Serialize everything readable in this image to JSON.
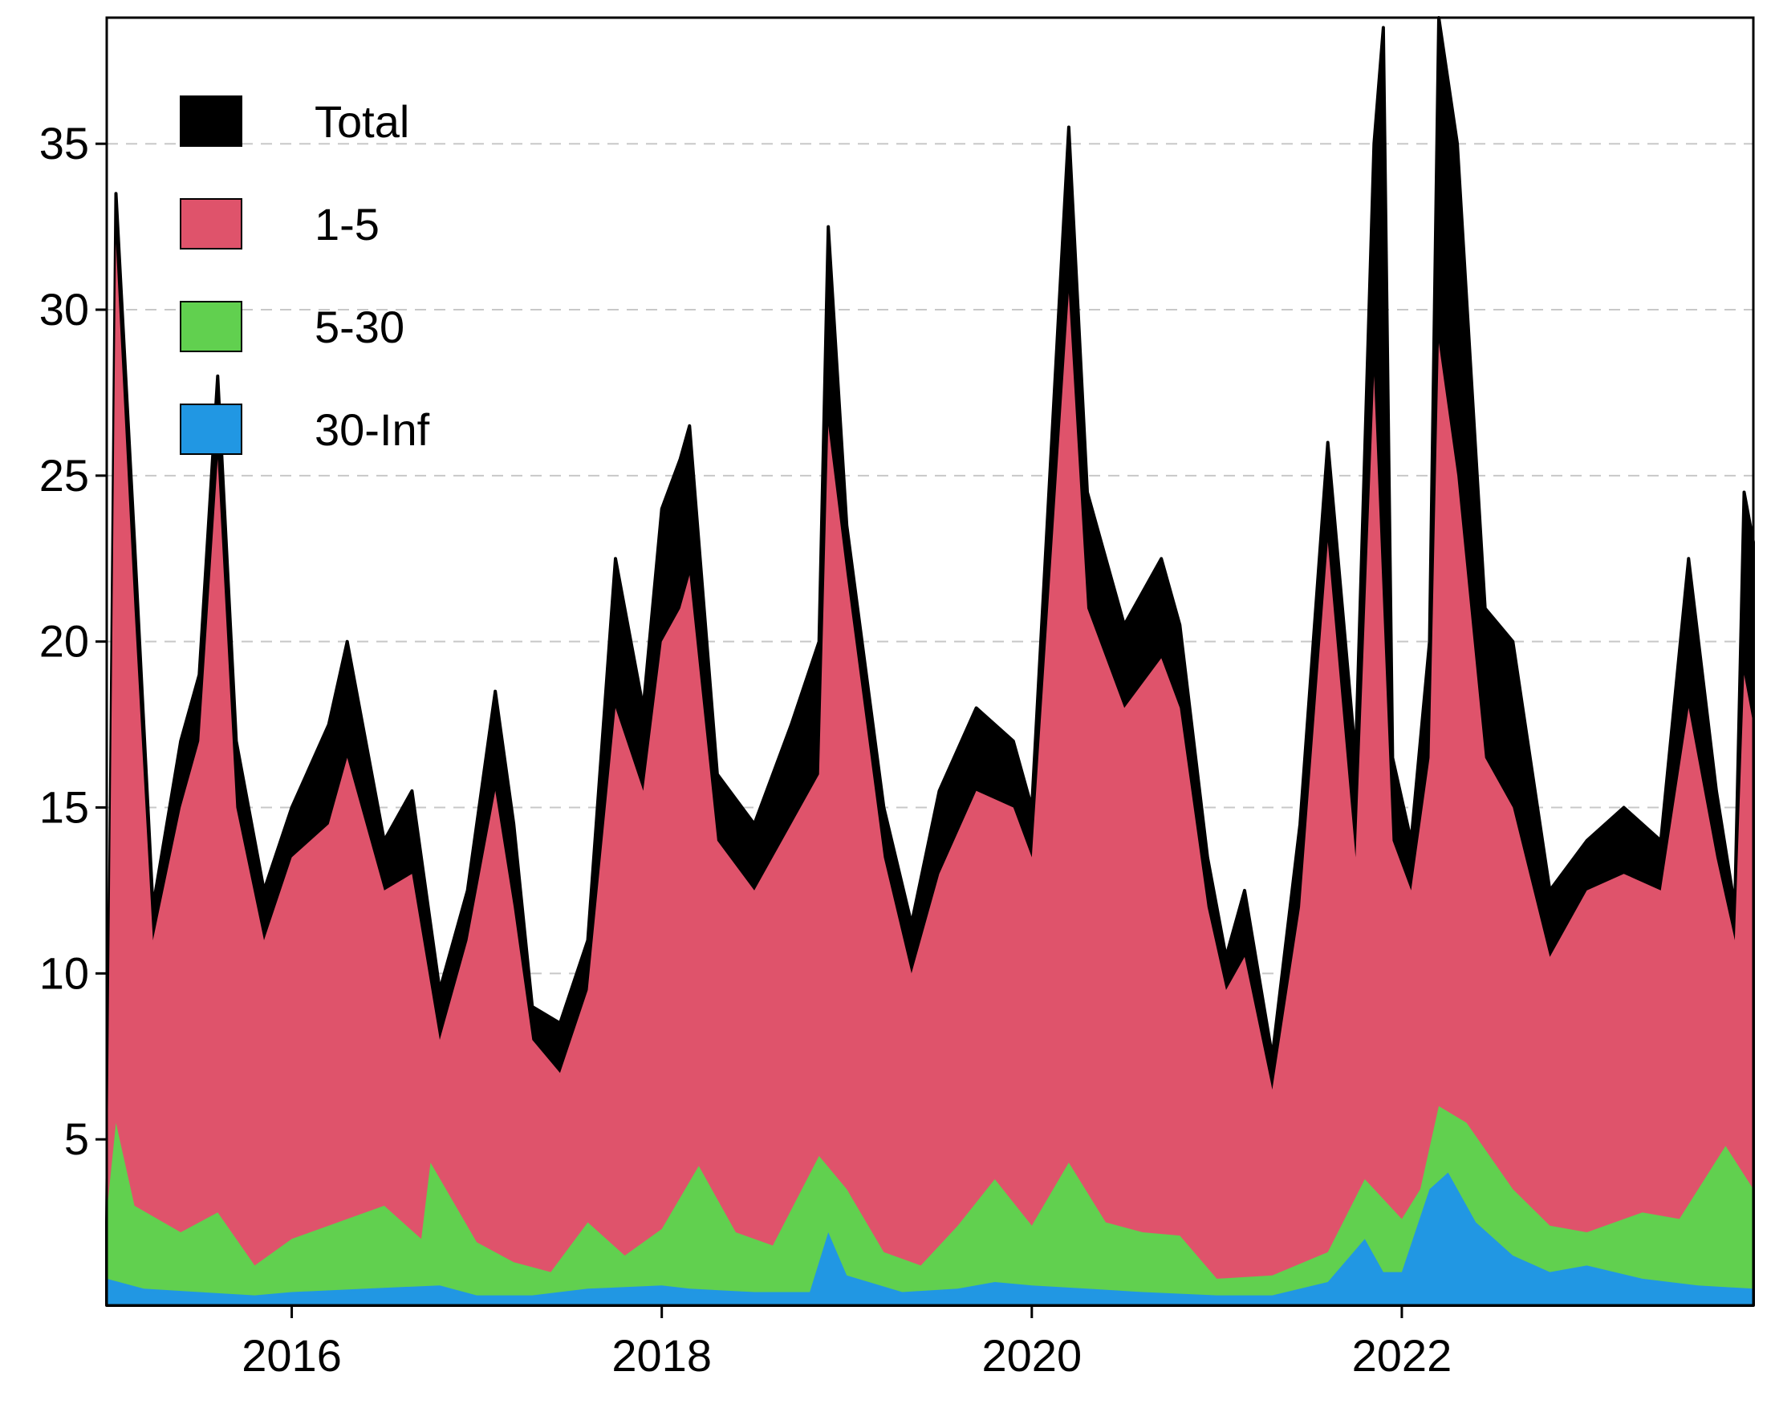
{
  "chart_data": {
    "type": "area",
    "stacked": true,
    "title": "",
    "xlabel": "",
    "ylabel": "",
    "x_range": [
      2015.0,
      2023.9
    ],
    "ylim": [
      0,
      38.8
    ],
    "x_ticks": [
      2016,
      2018,
      2020,
      2022
    ],
    "x_tick_labels": [
      "2016",
      "2018",
      "2020",
      "2022"
    ],
    "y_ticks": [
      5,
      10,
      15,
      20,
      25,
      30,
      35
    ],
    "y_tick_labels": [
      "5",
      "10",
      "15",
      "20",
      "25",
      "30",
      "35"
    ],
    "grid": "horizontal dashed",
    "legend_position": "top-left",
    "legend": [
      "Total",
      "1-5",
      "5-30",
      "30-Inf"
    ],
    "series": [
      {
        "name": "30-Inf",
        "color": "#2197e3",
        "points": [
          [
            2015.0,
            0.8
          ],
          [
            2015.2,
            0.5
          ],
          [
            2015.5,
            0.4
          ],
          [
            2015.8,
            0.3
          ],
          [
            2016.0,
            0.4
          ],
          [
            2016.4,
            0.5
          ],
          [
            2016.8,
            0.6
          ],
          [
            2017.0,
            0.3
          ],
          [
            2017.3,
            0.3
          ],
          [
            2017.6,
            0.5
          ],
          [
            2018.0,
            0.6
          ],
          [
            2018.15,
            0.5
          ],
          [
            2018.5,
            0.4
          ],
          [
            2018.8,
            0.4
          ],
          [
            2018.9,
            2.2
          ],
          [
            2019.0,
            0.9
          ],
          [
            2019.3,
            0.4
          ],
          [
            2019.6,
            0.5
          ],
          [
            2019.8,
            0.7
          ],
          [
            2020.0,
            0.6
          ],
          [
            2020.3,
            0.5
          ],
          [
            2020.6,
            0.4
          ],
          [
            2021.0,
            0.3
          ],
          [
            2021.3,
            0.3
          ],
          [
            2021.6,
            0.7
          ],
          [
            2021.8,
            2.0
          ],
          [
            2021.9,
            1.0
          ],
          [
            2022.0,
            1.0
          ],
          [
            2022.15,
            3.5
          ],
          [
            2022.25,
            4.0
          ],
          [
            2022.4,
            2.5
          ],
          [
            2022.6,
            1.5
          ],
          [
            2022.8,
            1.0
          ],
          [
            2023.0,
            1.2
          ],
          [
            2023.3,
            0.8
          ],
          [
            2023.6,
            0.6
          ],
          [
            2023.9,
            0.5
          ]
        ]
      },
      {
        "name": "5-30",
        "color": "#61d04f",
        "points": [
          [
            2015.0,
            2.8
          ],
          [
            2015.05,
            5.5
          ],
          [
            2015.15,
            3.0
          ],
          [
            2015.4,
            2.2
          ],
          [
            2015.6,
            2.8
          ],
          [
            2015.8,
            1.2
          ],
          [
            2016.0,
            2.0
          ],
          [
            2016.3,
            2.6
          ],
          [
            2016.5,
            3.0
          ],
          [
            2016.7,
            2.0
          ],
          [
            2016.75,
            4.3
          ],
          [
            2017.0,
            1.9
          ],
          [
            2017.2,
            1.3
          ],
          [
            2017.4,
            1.0
          ],
          [
            2017.6,
            2.5
          ],
          [
            2017.8,
            1.5
          ],
          [
            2018.0,
            2.3
          ],
          [
            2018.2,
            4.2
          ],
          [
            2018.4,
            2.2
          ],
          [
            2018.6,
            1.8
          ],
          [
            2018.85,
            4.5
          ],
          [
            2019.0,
            3.5
          ],
          [
            2019.2,
            1.6
          ],
          [
            2019.4,
            1.2
          ],
          [
            2019.6,
            2.4
          ],
          [
            2019.8,
            3.8
          ],
          [
            2020.0,
            2.4
          ],
          [
            2020.2,
            4.3
          ],
          [
            2020.4,
            2.5
          ],
          [
            2020.6,
            2.2
          ],
          [
            2020.8,
            2.1
          ],
          [
            2021.0,
            0.8
          ],
          [
            2021.3,
            0.9
          ],
          [
            2021.6,
            1.6
          ],
          [
            2021.8,
            3.8
          ],
          [
            2022.0,
            2.6
          ],
          [
            2022.1,
            3.5
          ],
          [
            2022.2,
            6.0
          ],
          [
            2022.35,
            5.5
          ],
          [
            2022.6,
            3.5
          ],
          [
            2022.8,
            2.4
          ],
          [
            2023.0,
            2.2
          ],
          [
            2023.3,
            2.8
          ],
          [
            2023.5,
            2.6
          ],
          [
            2023.75,
            4.8
          ],
          [
            2023.9,
            3.5
          ]
        ]
      },
      {
        "name": "1-5",
        "color": "#df536b",
        "points": [
          [
            2015.0,
            2.0
          ],
          [
            2015.05,
            32.0
          ],
          [
            2015.15,
            21.0
          ],
          [
            2015.25,
            11.0
          ],
          [
            2015.4,
            15.0
          ],
          [
            2015.5,
            17.0
          ],
          [
            2015.6,
            25.5
          ],
          [
            2015.7,
            15.0
          ],
          [
            2015.85,
            11.0
          ],
          [
            2016.0,
            13.5
          ],
          [
            2016.2,
            14.5
          ],
          [
            2016.3,
            16.5
          ],
          [
            2016.5,
            12.5
          ],
          [
            2016.65,
            13.0
          ],
          [
            2016.8,
            8.0
          ],
          [
            2016.95,
            11.0
          ],
          [
            2017.1,
            15.5
          ],
          [
            2017.2,
            12.0
          ],
          [
            2017.3,
            8.0
          ],
          [
            2017.45,
            7.0
          ],
          [
            2017.6,
            9.5
          ],
          [
            2017.75,
            18.0
          ],
          [
            2017.9,
            15.5
          ],
          [
            2018.0,
            20.0
          ],
          [
            2018.1,
            21.0
          ],
          [
            2018.15,
            22.0
          ],
          [
            2018.3,
            14.0
          ],
          [
            2018.5,
            12.5
          ],
          [
            2018.7,
            14.5
          ],
          [
            2018.85,
            16.0
          ],
          [
            2018.9,
            26.5
          ],
          [
            2019.0,
            22.0
          ],
          [
            2019.2,
            13.5
          ],
          [
            2019.35,
            10.0
          ],
          [
            2019.5,
            13.0
          ],
          [
            2019.7,
            15.5
          ],
          [
            2019.9,
            15.0
          ],
          [
            2020.0,
            13.5
          ],
          [
            2020.2,
            30.5
          ],
          [
            2020.3,
            21.0
          ],
          [
            2020.5,
            18.0
          ],
          [
            2020.7,
            19.5
          ],
          [
            2020.8,
            18.0
          ],
          [
            2020.95,
            12.0
          ],
          [
            2021.05,
            9.5
          ],
          [
            2021.15,
            10.5
          ],
          [
            2021.3,
            6.5
          ],
          [
            2021.45,
            12.0
          ],
          [
            2021.6,
            23.0
          ],
          [
            2021.75,
            13.5
          ],
          [
            2021.85,
            28.0
          ],
          [
            2021.95,
            14.0
          ],
          [
            2022.05,
            12.5
          ],
          [
            2022.15,
            16.5
          ],
          [
            2022.2,
            29.0
          ],
          [
            2022.3,
            25.0
          ],
          [
            2022.45,
            16.5
          ],
          [
            2022.6,
            15.0
          ],
          [
            2022.8,
            10.5
          ],
          [
            2023.0,
            12.5
          ],
          [
            2023.2,
            13.0
          ],
          [
            2023.4,
            12.5
          ],
          [
            2023.55,
            18.0
          ],
          [
            2023.7,
            13.5
          ],
          [
            2023.8,
            11.0
          ],
          [
            2023.85,
            19.0
          ],
          [
            2023.9,
            17.5
          ]
        ]
      },
      {
        "name": "Total",
        "color": "#000000",
        "points": [
          [
            2015.0,
            2.5
          ],
          [
            2015.05,
            33.5
          ],
          [
            2015.15,
            23.0
          ],
          [
            2015.25,
            12.0
          ],
          [
            2015.4,
            17.0
          ],
          [
            2015.5,
            19.0
          ],
          [
            2015.6,
            28.0
          ],
          [
            2015.7,
            17.0
          ],
          [
            2015.85,
            12.5
          ],
          [
            2016.0,
            15.0
          ],
          [
            2016.2,
            17.5
          ],
          [
            2016.3,
            20.0
          ],
          [
            2016.5,
            14.0
          ],
          [
            2016.65,
            15.5
          ],
          [
            2016.8,
            9.5
          ],
          [
            2016.95,
            12.5
          ],
          [
            2017.1,
            18.5
          ],
          [
            2017.2,
            14.5
          ],
          [
            2017.3,
            9.0
          ],
          [
            2017.45,
            8.5
          ],
          [
            2017.6,
            11.0
          ],
          [
            2017.75,
            22.5
          ],
          [
            2017.9,
            18.0
          ],
          [
            2018.0,
            24.0
          ],
          [
            2018.1,
            25.5
          ],
          [
            2018.15,
            26.5
          ],
          [
            2018.3,
            16.0
          ],
          [
            2018.5,
            14.5
          ],
          [
            2018.7,
            17.5
          ],
          [
            2018.85,
            20.0
          ],
          [
            2018.9,
            32.5
          ],
          [
            2019.0,
            23.5
          ],
          [
            2019.2,
            15.0
          ],
          [
            2019.35,
            11.5
          ],
          [
            2019.5,
            15.5
          ],
          [
            2019.7,
            18.0
          ],
          [
            2019.9,
            17.0
          ],
          [
            2020.0,
            15.0
          ],
          [
            2020.2,
            35.5
          ],
          [
            2020.3,
            24.5
          ],
          [
            2020.5,
            20.5
          ],
          [
            2020.7,
            22.5
          ],
          [
            2020.8,
            20.5
          ],
          [
            2020.95,
            13.5
          ],
          [
            2021.05,
            10.5
          ],
          [
            2021.15,
            12.5
          ],
          [
            2021.3,
            7.5
          ],
          [
            2021.45,
            14.5
          ],
          [
            2021.6,
            26.0
          ],
          [
            2021.75,
            16.5
          ],
          [
            2021.85,
            35.0
          ],
          [
            2021.9,
            38.5
          ],
          [
            2021.95,
            16.5
          ],
          [
            2022.05,
            14.0
          ],
          [
            2022.15,
            20.0
          ],
          [
            2022.2,
            38.8
          ],
          [
            2022.3,
            35.0
          ],
          [
            2022.45,
            21.0
          ],
          [
            2022.6,
            20.0
          ],
          [
            2022.8,
            12.5
          ],
          [
            2023.0,
            14.0
          ],
          [
            2023.2,
            15.0
          ],
          [
            2023.4,
            14.0
          ],
          [
            2023.55,
            22.5
          ],
          [
            2023.7,
            15.5
          ],
          [
            2023.8,
            12.0
          ],
          [
            2023.85,
            24.5
          ],
          [
            2023.9,
            23.0
          ]
        ]
      }
    ]
  }
}
